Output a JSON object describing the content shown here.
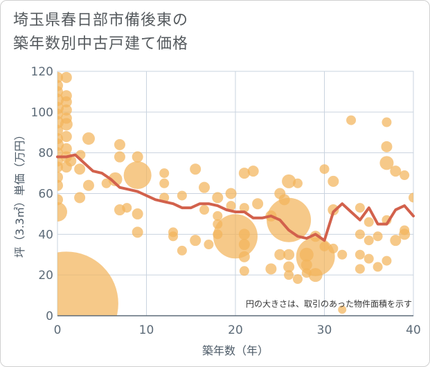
{
  "title_line1": "埼玉県春日部市備後東の",
  "title_line2": "築年数別中古戸建て価格",
  "chart_data": {
    "type": "scatter",
    "title": "埼玉県春日部市備後東の築年数別中古戸建て価格",
    "xlabel": "築年数（年）",
    "ylabel": "坪（3.3㎡）単価（万円）",
    "xlim": [
      0,
      40
    ],
    "ylim": [
      0,
      120
    ],
    "x_ticks": [
      0,
      10,
      20,
      30,
      40
    ],
    "y_ticks": [
      0,
      20,
      40,
      60,
      80,
      100,
      120
    ],
    "grid": true,
    "annotation": "円の大きさは、取引のあった物件面積を示す",
    "colors": {
      "bubble": "#f2b45c",
      "line": "#d2614c",
      "grid": "#c9d3df",
      "axis": "#5d6b78"
    },
    "bubbles": [
      {
        "x": 0,
        "y": 117,
        "s": 8
      },
      {
        "x": 0,
        "y": 113,
        "s": 8
      },
      {
        "x": 0,
        "y": 110,
        "s": 8
      },
      {
        "x": 0,
        "y": 106,
        "s": 9
      },
      {
        "x": 0,
        "y": 102,
        "s": 9
      },
      {
        "x": 0,
        "y": 99,
        "s": 8
      },
      {
        "x": 0,
        "y": 95,
        "s": 9
      },
      {
        "x": 0,
        "y": 91,
        "s": 8
      },
      {
        "x": 0,
        "y": 87,
        "s": 8
      },
      {
        "x": 0,
        "y": 84,
        "s": 9
      },
      {
        "x": 0,
        "y": 80,
        "s": 8
      },
      {
        "x": 0,
        "y": 76,
        "s": 8
      },
      {
        "x": 0,
        "y": 73,
        "s": 8
      },
      {
        "x": 0,
        "y": 68,
        "s": 8
      },
      {
        "x": 0,
        "y": 64,
        "s": 8
      },
      {
        "x": 0,
        "y": 57,
        "s": 8
      },
      {
        "x": 0,
        "y": 51,
        "s": 14
      },
      {
        "x": 1,
        "y": 117,
        "s": 8
      },
      {
        "x": 1,
        "y": 108,
        "s": 8
      },
      {
        "x": 1,
        "y": 105,
        "s": 8
      },
      {
        "x": 1,
        "y": 101,
        "s": 8
      },
      {
        "x": 1,
        "y": 97,
        "s": 8
      },
      {
        "x": 1,
        "y": 94,
        "s": 9
      },
      {
        "x": 1,
        "y": 88,
        "s": 8
      },
      {
        "x": 1,
        "y": 82,
        "s": 8
      },
      {
        "x": 1,
        "y": 78,
        "s": 8
      },
      {
        "x": 1,
        "y": 73,
        "s": 8
      },
      {
        "x": 1,
        "y": 6,
        "s": 75
      },
      {
        "x": 1.5,
        "y": 76,
        "s": 8
      },
      {
        "x": 2.5,
        "y": 72,
        "s": 8
      },
      {
        "x": 2.5,
        "y": 58,
        "s": 8
      },
      {
        "x": 2.6,
        "y": 79,
        "s": 7
      },
      {
        "x": 3.5,
        "y": 87,
        "s": 9
      },
      {
        "x": 3.5,
        "y": 64,
        "s": 8
      },
      {
        "x": 5.5,
        "y": 65,
        "s": 7
      },
      {
        "x": 6.5,
        "y": 67,
        "s": 10
      },
      {
        "x": 7,
        "y": 84,
        "s": 8
      },
      {
        "x": 7,
        "y": 78,
        "s": 8
      },
      {
        "x": 7,
        "y": 52,
        "s": 8
      },
      {
        "x": 7.8,
        "y": 53,
        "s": 7
      },
      {
        "x": 9,
        "y": 78,
        "s": 8
      },
      {
        "x": 9,
        "y": 69,
        "s": 20
      },
      {
        "x": 9,
        "y": 50,
        "s": 8
      },
      {
        "x": 9,
        "y": 41,
        "s": 8
      },
      {
        "x": 12,
        "y": 70,
        "s": 7
      },
      {
        "x": 12,
        "y": 65,
        "s": 7
      },
      {
        "x": 12,
        "y": 58,
        "s": 7
      },
      {
        "x": 13,
        "y": 41,
        "s": 7
      },
      {
        "x": 13,
        "y": 39,
        "s": 7
      },
      {
        "x": 14,
        "y": 59,
        "s": 7
      },
      {
        "x": 14,
        "y": 32,
        "s": 7
      },
      {
        "x": 15.5,
        "y": 72,
        "s": 8
      },
      {
        "x": 15.5,
        "y": 37,
        "s": 8
      },
      {
        "x": 16.5,
        "y": 63,
        "s": 8
      },
      {
        "x": 16.5,
        "y": 52,
        "s": 7
      },
      {
        "x": 17,
        "y": 35,
        "s": 7
      },
      {
        "x": 18,
        "y": 58,
        "s": 8
      },
      {
        "x": 18,
        "y": 49,
        "s": 7
      },
      {
        "x": 18,
        "y": 45,
        "s": 7
      },
      {
        "x": 18,
        "y": 40,
        "s": 7
      },
      {
        "x": 19.5,
        "y": 60,
        "s": 8
      },
      {
        "x": 19.5,
        "y": 54,
        "s": 7
      },
      {
        "x": 20,
        "y": 39,
        "s": 32
      },
      {
        "x": 21,
        "y": 53,
        "s": 7
      },
      {
        "x": 21,
        "y": 40,
        "s": 8
      },
      {
        "x": 21,
        "y": 35,
        "s": 8
      },
      {
        "x": 21,
        "y": 29,
        "s": 8
      },
      {
        "x": 21,
        "y": 22,
        "s": 7
      },
      {
        "x": 21,
        "y": 70,
        "s": 8
      },
      {
        "x": 22,
        "y": 71,
        "s": 8
      },
      {
        "x": 22.5,
        "y": 55,
        "s": 8
      },
      {
        "x": 24,
        "y": 49,
        "s": 8
      },
      {
        "x": 24,
        "y": 23,
        "s": 8
      },
      {
        "x": 25,
        "y": 60,
        "s": 8
      },
      {
        "x": 25,
        "y": 30,
        "s": 8
      },
      {
        "x": 25.5,
        "y": 57,
        "s": 8
      },
      {
        "x": 26,
        "y": 66,
        "s": 10
      },
      {
        "x": 26,
        "y": 47,
        "s": 32
      },
      {
        "x": 26,
        "y": 30,
        "s": 8
      },
      {
        "x": 26,
        "y": 24,
        "s": 8
      },
      {
        "x": 26,
        "y": 20,
        "s": 7
      },
      {
        "x": 27,
        "y": 65,
        "s": 7
      },
      {
        "x": 27,
        "y": 18,
        "s": 7
      },
      {
        "x": 28,
        "y": 30,
        "s": 10
      },
      {
        "x": 28,
        "y": 25,
        "s": 8
      },
      {
        "x": 28,
        "y": 21,
        "s": 7
      },
      {
        "x": 29,
        "y": 29,
        "s": 28
      },
      {
        "x": 29,
        "y": 39,
        "s": 8
      },
      {
        "x": 29,
        "y": 20,
        "s": 10
      },
      {
        "x": 30,
        "y": 72,
        "s": 7
      },
      {
        "x": 30,
        "y": 34,
        "s": 7
      },
      {
        "x": 31,
        "y": 66,
        "s": 8
      },
      {
        "x": 31,
        "y": 52,
        "s": 8
      },
      {
        "x": 31,
        "y": 33,
        "s": 7
      },
      {
        "x": 32,
        "y": 30,
        "s": 7
      },
      {
        "x": 32,
        "y": 3,
        "s": 6
      },
      {
        "x": 33,
        "y": 96,
        "s": 7
      },
      {
        "x": 34,
        "y": 53,
        "s": 7
      },
      {
        "x": 34,
        "y": 40,
        "s": 7
      },
      {
        "x": 34,
        "y": 30,
        "s": 7
      },
      {
        "x": 34,
        "y": 23,
        "s": 7
      },
      {
        "x": 35,
        "y": 46,
        "s": 7
      },
      {
        "x": 35,
        "y": 37,
        "s": 7
      },
      {
        "x": 35,
        "y": 28,
        "s": 7
      },
      {
        "x": 36,
        "y": 39,
        "s": 7
      },
      {
        "x": 36,
        "y": 24,
        "s": 7
      },
      {
        "x": 37,
        "y": 95,
        "s": 7
      },
      {
        "x": 37,
        "y": 83,
        "s": 8
      },
      {
        "x": 37,
        "y": 75,
        "s": 10
      },
      {
        "x": 37,
        "y": 47,
        "s": 7
      },
      {
        "x": 37,
        "y": 27,
        "s": 7
      },
      {
        "x": 38,
        "y": 71,
        "s": 8
      },
      {
        "x": 38,
        "y": 37,
        "s": 8
      },
      {
        "x": 39,
        "y": 69,
        "s": 7
      },
      {
        "x": 39,
        "y": 42,
        "s": 7
      },
      {
        "x": 39,
        "y": 40,
        "s": 8
      },
      {
        "x": 40,
        "y": 58,
        "s": 7
      }
    ],
    "line": {
      "x": [
        0,
        1,
        2,
        3,
        4,
        5,
        6,
        7,
        8,
        9,
        10,
        11,
        12,
        13,
        14,
        15,
        16,
        17,
        18,
        19,
        20,
        21,
        22,
        23,
        24,
        25,
        26,
        27,
        28,
        29,
        30,
        31,
        32,
        33,
        34,
        35,
        36,
        37,
        38,
        39,
        40
      ],
      "y": [
        78,
        78,
        79,
        75,
        71,
        70,
        67,
        63,
        62,
        61,
        59,
        57,
        56,
        55,
        53,
        53,
        55,
        55,
        54,
        52,
        51,
        51,
        48,
        48,
        49,
        47,
        42,
        39,
        38,
        40,
        37,
        51,
        55,
        51,
        47,
        53,
        45,
        45,
        52,
        54,
        49
      ]
    }
  }
}
